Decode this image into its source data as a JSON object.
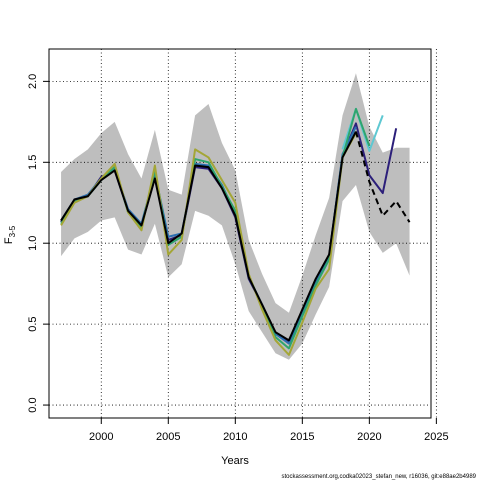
{
  "chart_data": {
    "type": "line",
    "xlabel": "Years",
    "ylabel_main": "F",
    "ylabel_sub": "3-5",
    "xlim": [
      1996.1,
      2024.6
    ],
    "ylim": [
      -0.08,
      2.2
    ],
    "xticks": [
      2000,
      2005,
      2010,
      2015,
      2020,
      2025
    ],
    "yticks": [
      0.0,
      0.5,
      1.0,
      1.5,
      2.0
    ],
    "ytick_labels": [
      "0.0",
      "0.5",
      "1.0",
      "1.5",
      "2.0"
    ],
    "grid": true,
    "caption": "stockassessment.org,codka02023_stefan_new, r16036, git:e88ae2b4989",
    "confidence_band": {
      "color": "#bebebe",
      "x": [
        1997,
        1998,
        1999,
        2000,
        2001,
        2002,
        2003,
        2004,
        2005,
        2006,
        2007,
        2008,
        2009,
        2010,
        2011,
        2012,
        2013,
        2014,
        2015,
        2016,
        2017,
        2018,
        2019,
        2020,
        2021,
        2022,
        2023
      ],
      "upper": [
        1.44,
        1.52,
        1.58,
        1.68,
        1.75,
        1.55,
        1.4,
        1.7,
        1.33,
        1.3,
        1.79,
        1.86,
        1.62,
        1.45,
        1.02,
        0.81,
        0.63,
        0.57,
        0.8,
        1.05,
        1.28,
        1.79,
        2.05,
        1.72,
        1.56,
        1.59,
        1.59
      ],
      "lower": [
        0.92,
        1.03,
        1.07,
        1.14,
        1.16,
        0.96,
        0.93,
        1.12,
        0.79,
        0.87,
        1.2,
        1.17,
        1.11,
        0.87,
        0.58,
        0.45,
        0.32,
        0.28,
        0.38,
        0.56,
        0.73,
        1.26,
        1.36,
        1.07,
        0.94,
        1.0,
        0.8
      ]
    },
    "series": [
      {
        "color": "#2c1f7a",
        "x": [
          1997,
          1998,
          1999,
          2000,
          2001,
          2002,
          2003,
          2004,
          2005,
          2006,
          2007,
          2008,
          2009,
          2010,
          2011,
          2012,
          2013,
          2014,
          2015,
          2016,
          2017,
          2018,
          2019,
          2020,
          2021,
          2022
        ],
        "values": [
          1.13,
          1.27,
          1.29,
          1.41,
          1.45,
          1.2,
          1.11,
          1.41,
          1.02,
          1.05,
          1.47,
          1.46,
          1.34,
          1.16,
          0.78,
          0.62,
          0.44,
          0.39,
          0.58,
          0.77,
          0.92,
          1.54,
          1.74,
          1.42,
          1.31,
          1.71
        ]
      },
      {
        "color": "#2b6fb0",
        "x": [
          1997,
          1998,
          1999,
          2000,
          2001,
          2002,
          2003,
          2004,
          2005,
          2006,
          2007,
          2008,
          2009,
          2010,
          2011,
          2012,
          2013,
          2014,
          2015,
          2016,
          2017,
          2018,
          2019
        ],
        "values": [
          1.14,
          1.27,
          1.3,
          1.4,
          1.46,
          1.21,
          1.12,
          1.43,
          1.04,
          1.06,
          1.49,
          1.48,
          1.36,
          1.18,
          0.79,
          0.62,
          0.44,
          0.38,
          0.57,
          0.76,
          0.92,
          1.55,
          1.72
        ]
      },
      {
        "color": "#5ec8d2",
        "x": [
          2018,
          2019,
          2020,
          2021
        ],
        "values": [
          1.58,
          1.83,
          1.57,
          1.79
        ]
      },
      {
        "color": "#2ea56e",
        "x": [
          1997,
          1998,
          1999,
          2000,
          2001,
          2002,
          2003,
          2004,
          2005,
          2006,
          2007,
          2008,
          2009,
          2010,
          2011,
          2012,
          2013,
          2014,
          2015,
          2016,
          2017,
          2018,
          2019,
          2020
        ],
        "values": [
          1.12,
          1.26,
          1.29,
          1.39,
          1.47,
          1.19,
          1.1,
          1.45,
          0.99,
          1.04,
          1.52,
          1.5,
          1.35,
          1.2,
          0.8,
          0.61,
          0.42,
          0.35,
          0.55,
          0.74,
          0.9,
          1.53,
          1.83,
          1.6
        ]
      },
      {
        "color": "#a4a636",
        "x": [
          1997,
          1998,
          1999,
          2000,
          2001,
          2002,
          2003,
          2004,
          2005,
          2006,
          2007,
          2008,
          2009,
          2010,
          2011,
          2012,
          2013,
          2014,
          2015,
          2016,
          2017,
          2018,
          2019
        ],
        "values": [
          1.11,
          1.25,
          1.29,
          1.4,
          1.49,
          1.19,
          1.08,
          1.48,
          0.93,
          1.02,
          1.58,
          1.53,
          1.39,
          1.25,
          0.81,
          0.59,
          0.4,
          0.31,
          0.51,
          0.72,
          0.84,
          1.53,
          1.68
        ]
      },
      {
        "color": "#000000",
        "x": [
          1997,
          1998,
          1999,
          2000,
          2001,
          2002,
          2003,
          2004,
          2005,
          2006,
          2007,
          2008,
          2009,
          2010,
          2011,
          2012,
          2013,
          2014,
          2015,
          2016,
          2017,
          2018,
          2019
        ],
        "values": [
          1.14,
          1.27,
          1.29,
          1.39,
          1.45,
          1.2,
          1.11,
          1.4,
          1.0,
          1.06,
          1.48,
          1.47,
          1.34,
          1.17,
          0.79,
          0.62,
          0.45,
          0.4,
          0.59,
          0.78,
          0.93,
          1.53,
          1.69
        ]
      },
      {
        "color": "#000000",
        "dashed": true,
        "x": [
          2019,
          2020,
          2021,
          2022,
          2023
        ],
        "values": [
          1.69,
          1.38,
          1.17,
          1.26,
          1.13
        ]
      }
    ]
  }
}
